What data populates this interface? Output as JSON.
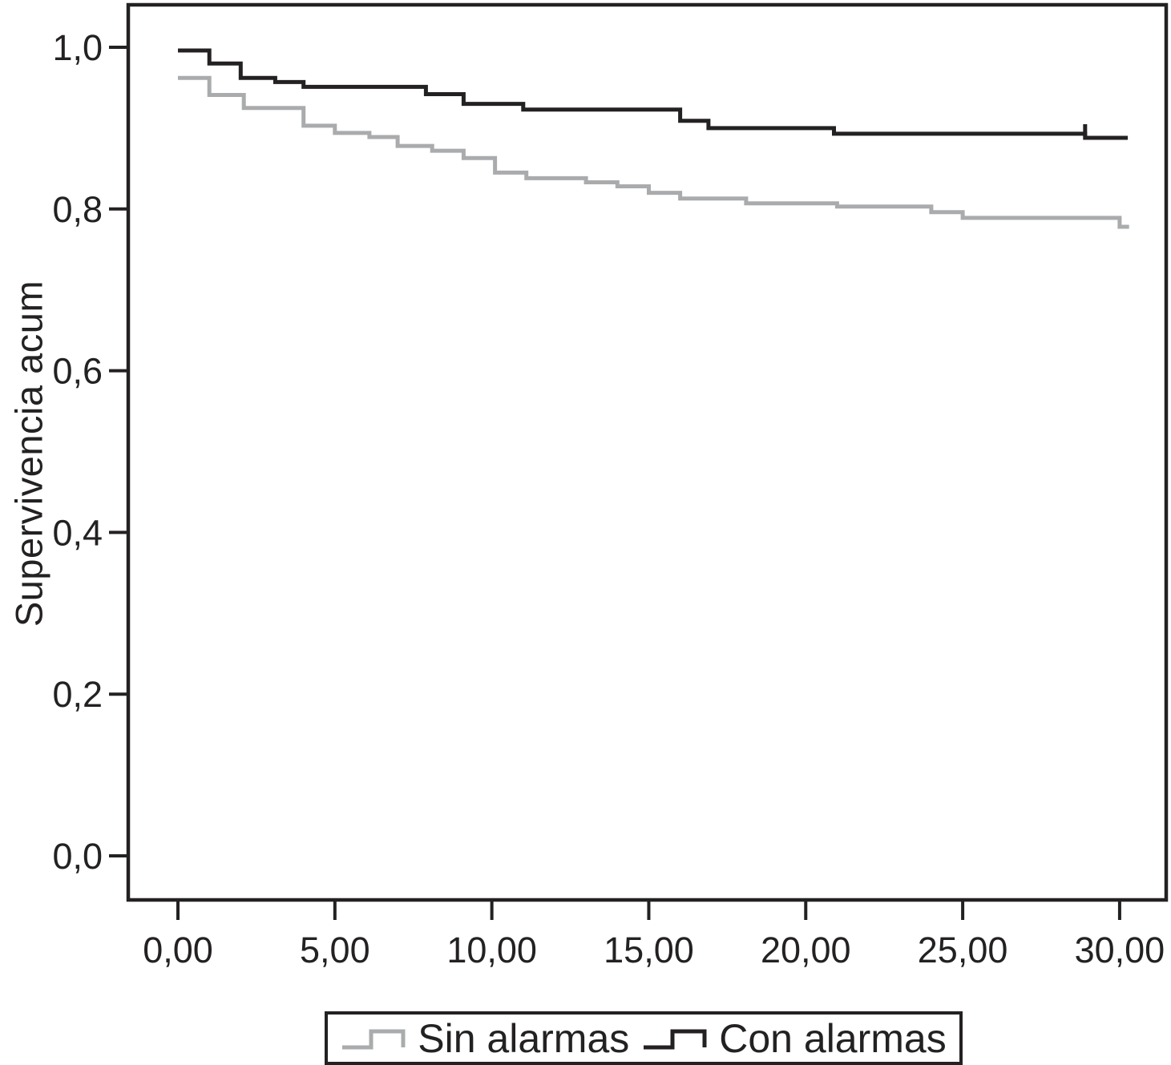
{
  "figure": {
    "background": "#ffffff",
    "frame_color": "#242122",
    "text_color": "#242122"
  },
  "chart_data": {
    "type": "line",
    "subtype": "kaplan-meier-step",
    "title": "",
    "xlabel": "",
    "ylabel": "Supervivencia acum",
    "grid": false,
    "legend_position": "bottom-center",
    "xlim": [
      -1.583,
      31.483
    ],
    "ylim": [
      -0.0545,
      1.0525
    ],
    "x_ticks": [
      {
        "value": 0,
        "label": "0,00"
      },
      {
        "value": 5,
        "label": "5,00"
      },
      {
        "value": 10,
        "label": "10,00"
      },
      {
        "value": 15,
        "label": "15,00"
      },
      {
        "value": 20,
        "label": "20,00"
      },
      {
        "value": 25,
        "label": "25,00"
      },
      {
        "value": 30,
        "label": "30,00"
      }
    ],
    "y_ticks": [
      {
        "value": 0.0,
        "label": "0,0"
      },
      {
        "value": 0.2,
        "label": "0,2"
      },
      {
        "value": 0.4,
        "label": "0,4"
      },
      {
        "value": 0.6,
        "label": "0,6"
      },
      {
        "value": 0.8,
        "label": "0,8"
      },
      {
        "value": 1.0,
        "label": "1,0"
      }
    ],
    "series": [
      {
        "name": "Sin alarmas",
        "color": "#a9abad",
        "line_width": 5,
        "end_t": 30.3,
        "censor_marks": [],
        "points": [
          [
            0.0,
            0.962
          ],
          [
            1.0,
            0.941
          ],
          [
            2.1,
            0.925
          ],
          [
            4.0,
            0.903
          ],
          [
            5.0,
            0.894
          ],
          [
            6.1,
            0.889
          ],
          [
            7.0,
            0.878
          ],
          [
            8.1,
            0.872
          ],
          [
            9.1,
            0.863
          ],
          [
            10.1,
            0.845
          ],
          [
            11.1,
            0.838
          ],
          [
            13.0,
            0.833
          ],
          [
            14.0,
            0.828
          ],
          [
            15.0,
            0.82
          ],
          [
            16.0,
            0.813
          ],
          [
            18.1,
            0.807
          ],
          [
            21.0,
            0.803
          ],
          [
            24.0,
            0.796
          ],
          [
            25.0,
            0.789
          ],
          [
            30.0,
            0.778
          ]
        ]
      },
      {
        "name": "Con alarmas",
        "color": "#242122",
        "line_width": 5,
        "end_t": 30.26,
        "censor_marks": [
          [
            28.9,
            0.893
          ]
        ],
        "points": [
          [
            0.0,
            0.996
          ],
          [
            1.0,
            0.98
          ],
          [
            2.0,
            0.962
          ],
          [
            3.1,
            0.957
          ],
          [
            4.0,
            0.951
          ],
          [
            7.9,
            0.942
          ],
          [
            9.1,
            0.93
          ],
          [
            11.0,
            0.923
          ],
          [
            16.0,
            0.909
          ],
          [
            16.9,
            0.9
          ],
          [
            20.9,
            0.893
          ],
          [
            28.9,
            0.888
          ]
        ]
      }
    ]
  }
}
